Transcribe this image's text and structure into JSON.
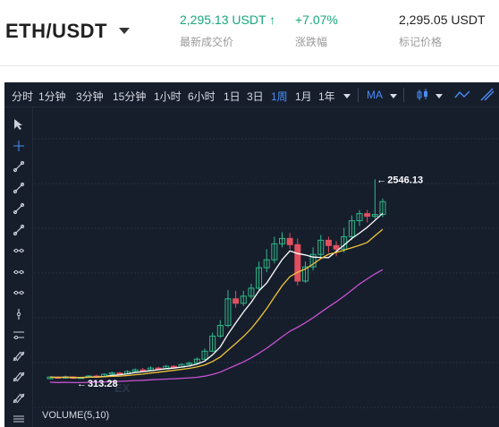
{
  "header": {
    "pair": "ETH/USDT",
    "last_price": "2,295.13 USDT",
    "last_price_label": "最新成交价",
    "change": "+7.07%",
    "change_label": "涨跌幅",
    "mark_price": "2,295.05 USDT",
    "mark_price_label": "标记价格"
  },
  "toolbar": {
    "intervals": [
      "分时",
      "1分钟",
      "3分钟",
      "15分钟",
      "1小时",
      "6小时",
      "1日",
      "3日",
      "1周",
      "1月",
      "1年"
    ],
    "active_interval": "1周",
    "indicator": "MA"
  },
  "sidebar_tools": [
    "cursor-icon",
    "crosshair-icon",
    "trend-line-icon",
    "ray-icon",
    "extended-line-icon",
    "info-line-icon",
    "horizontal-line-icon",
    "horizontal-ray-icon",
    "parallel-channel-icon",
    "vertical-line-icon",
    "price-channel-icon",
    "pitchfork-icon",
    "fib-icon",
    "gann-icon",
    "more-tools-icon"
  ],
  "chart": {
    "max_label": "2546.13",
    "min_label": "313.28",
    "volume_label": "VOLUME(5,10)",
    "watermark": "EX",
    "colors": {
      "up": "#2fb98a",
      "down": "#e0505e",
      "ma1": "#ffffff",
      "ma2": "#f0c23a",
      "ma3": "#c852d1",
      "bg": "#161e2c",
      "grid": "#263042"
    }
  },
  "chart_data": {
    "type": "candlestick",
    "y_min_label": 313.28,
    "y_max_label": 2546.13,
    "candles": [
      [
        300,
        318,
        296,
        325
      ],
      [
        318,
        312,
        305,
        330
      ],
      [
        312,
        320,
        300,
        335
      ],
      [
        320,
        305,
        298,
        328
      ],
      [
        305,
        315,
        300,
        322
      ],
      [
        315,
        330,
        310,
        340
      ],
      [
        330,
        325,
        315,
        345
      ],
      [
        325,
        350,
        320,
        360
      ],
      [
        350,
        365,
        340,
        380
      ],
      [
        365,
        355,
        345,
        375
      ],
      [
        355,
        380,
        350,
        395
      ],
      [
        380,
        400,
        370,
        415
      ],
      [
        400,
        395,
        385,
        420
      ],
      [
        395,
        420,
        390,
        440
      ],
      [
        420,
        410,
        400,
        435
      ],
      [
        410,
        440,
        405,
        455
      ],
      [
        440,
        430,
        420,
        450
      ],
      [
        430,
        460,
        425,
        470
      ],
      [
        460,
        475,
        450,
        490
      ],
      [
        475,
        520,
        465,
        540
      ],
      [
        520,
        610,
        510,
        640
      ],
      [
        610,
        780,
        600,
        820
      ],
      [
        780,
        900,
        760,
        960
      ],
      [
        900,
        1200,
        880,
        1300
      ],
      [
        1200,
        1150,
        1100,
        1290
      ],
      [
        1150,
        1230,
        1120,
        1290
      ],
      [
        1230,
        1320,
        1200,
        1370
      ],
      [
        1320,
        1550,
        1300,
        1620
      ],
      [
        1550,
        1640,
        1500,
        1760
      ],
      [
        1640,
        1820,
        1600,
        1900
      ],
      [
        1820,
        1880,
        1780,
        1950
      ],
      [
        1880,
        1810,
        1760,
        1940
      ],
      [
        1810,
        1400,
        1350,
        1880
      ],
      [
        1400,
        1560,
        1380,
        1620
      ],
      [
        1560,
        1700,
        1520,
        1780
      ],
      [
        1700,
        1860,
        1650,
        1920
      ],
      [
        1860,
        1800,
        1720,
        1900
      ],
      [
        1800,
        1760,
        1680,
        1850
      ],
      [
        1760,
        1900,
        1720,
        2000
      ],
      [
        1900,
        2080,
        1860,
        2140
      ],
      [
        2080,
        2160,
        2020,
        2200
      ],
      [
        2160,
        2130,
        2060,
        2200
      ],
      [
        2130,
        2150,
        2100,
        2546
      ],
      [
        2150,
        2295,
        2120,
        2330
      ]
    ]
  }
}
